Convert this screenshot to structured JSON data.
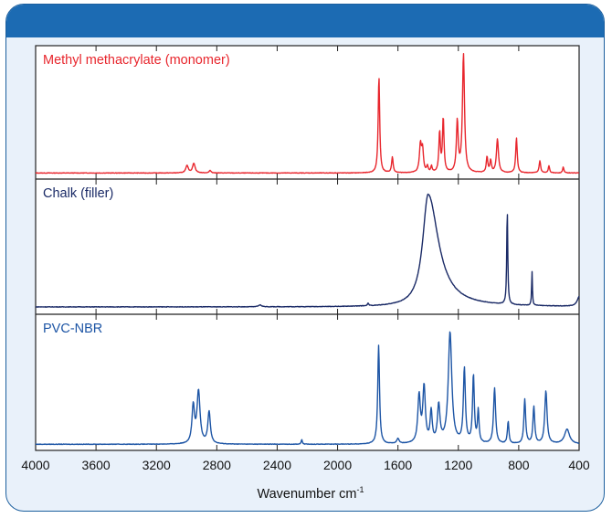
{
  "chart_data": {
    "type": "line",
    "xlabel": "Wavenumber cm",
    "xlabel_superscript": "-1",
    "xlim": [
      4000,
      400
    ],
    "x_axis_reversed": true,
    "xticks": [
      4000,
      3600,
      3200,
      2800,
      2400,
      2000,
      1600,
      1200,
      800,
      400
    ],
    "xtick_labels": [
      "4000",
      "3600",
      "3200",
      "2800",
      "2400",
      "2000",
      "1600",
      "1200",
      "800",
      "400"
    ],
    "y_ticks_shown": false,
    "ylim": [
      0,
      1
    ],
    "grid": false,
    "legend": "none (each panel labelled top-left)",
    "series": [
      {
        "name": "Methyl methacrylate (monomer)",
        "color": "#e8262d",
        "baseline": 0.02,
        "peaks": [
          {
            "x": 2997,
            "y": 0.06,
            "w": 10
          },
          {
            "x": 2952,
            "y": 0.08,
            "w": 10
          },
          {
            "x": 2844,
            "y": 0.02,
            "w": 8
          },
          {
            "x": 1726,
            "y": 0.8,
            "w": 6
          },
          {
            "x": 1637,
            "y": 0.13,
            "w": 6
          },
          {
            "x": 1451,
            "y": 0.23,
            "w": 8
          },
          {
            "x": 1437,
            "y": 0.18,
            "w": 7
          },
          {
            "x": 1405,
            "y": 0.05,
            "w": 6
          },
          {
            "x": 1378,
            "y": 0.05,
            "w": 5
          },
          {
            "x": 1324,
            "y": 0.33,
            "w": 6
          },
          {
            "x": 1300,
            "y": 0.45,
            "w": 6
          },
          {
            "x": 1207,
            "y": 0.42,
            "w": 7
          },
          {
            "x": 1166,
            "y": 0.98,
            "w": 8
          },
          {
            "x": 1010,
            "y": 0.13,
            "w": 6
          },
          {
            "x": 986,
            "y": 0.1,
            "w": 6
          },
          {
            "x": 941,
            "y": 0.28,
            "w": 8
          },
          {
            "x": 815,
            "y": 0.29,
            "w": 6
          },
          {
            "x": 660,
            "y": 0.1,
            "w": 6
          },
          {
            "x": 600,
            "y": 0.06,
            "w": 5
          },
          {
            "x": 505,
            "y": 0.05,
            "w": 5
          }
        ]
      },
      {
        "name": "Chalk (filler)",
        "color": "#1a2a66",
        "baseline": 0.03,
        "peaks": [
          {
            "x": 1400,
            "y": 0.92,
            "w": 70
          },
          {
            "x": 1798,
            "y": 0.02,
            "w": 5
          },
          {
            "x": 2513,
            "y": 0.015,
            "w": 12
          },
          {
            "x": 876,
            "y": 0.78,
            "w": 4
          },
          {
            "x": 712,
            "y": 0.28,
            "w": 3
          },
          {
            "x": 400,
            "y": 0.08,
            "w": 15
          }
        ]
      },
      {
        "name": "PVC-NBR",
        "color": "#1d55a5",
        "baseline": 0.02,
        "peaks": [
          {
            "x": 2956,
            "y": 0.3,
            "w": 10
          },
          {
            "x": 2921,
            "y": 0.42,
            "w": 12
          },
          {
            "x": 2851,
            "y": 0.26,
            "w": 10
          },
          {
            "x": 2237,
            "y": 0.04,
            "w": 4
          },
          {
            "x": 1728,
            "y": 0.8,
            "w": 7
          },
          {
            "x": 1600,
            "y": 0.04,
            "w": 10
          },
          {
            "x": 1460,
            "y": 0.38,
            "w": 10
          },
          {
            "x": 1427,
            "y": 0.45,
            "w": 10
          },
          {
            "x": 1380,
            "y": 0.25,
            "w": 8
          },
          {
            "x": 1330,
            "y": 0.3,
            "w": 10
          },
          {
            "x": 1255,
            "y": 0.9,
            "w": 14
          },
          {
            "x": 1160,
            "y": 0.6,
            "w": 8
          },
          {
            "x": 1100,
            "y": 0.55,
            "w": 7
          },
          {
            "x": 1068,
            "y": 0.26,
            "w": 6
          },
          {
            "x": 960,
            "y": 0.45,
            "w": 8
          },
          {
            "x": 870,
            "y": 0.18,
            "w": 6
          },
          {
            "x": 760,
            "y": 0.36,
            "w": 7
          },
          {
            "x": 700,
            "y": 0.3,
            "w": 7
          },
          {
            "x": 620,
            "y": 0.43,
            "w": 9
          },
          {
            "x": 480,
            "y": 0.12,
            "w": 20
          }
        ]
      }
    ]
  }
}
